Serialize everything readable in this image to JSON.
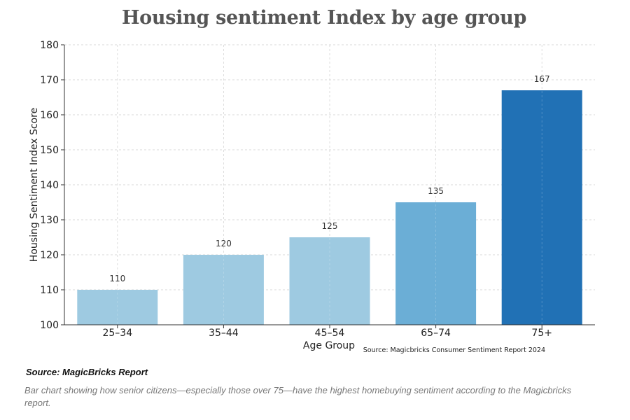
{
  "chart_data": {
    "type": "bar",
    "title": "Housing sentiment Index by age group",
    "xlabel": "Age Group",
    "ylabel": "Housing Sentiment Index Score",
    "categories": [
      "25–34",
      "35–44",
      "45–54",
      "65–74",
      "75+"
    ],
    "values": [
      110,
      120,
      125,
      135,
      167
    ],
    "data_labels": [
      "110",
      "120",
      "125",
      "135",
      "167"
    ],
    "bar_colors": [
      "#9ecae1",
      "#9ecae1",
      "#9ecae1",
      "#6baed6",
      "#2171b5"
    ],
    "ylim": [
      100,
      180
    ],
    "yticks": [
      100,
      110,
      120,
      130,
      140,
      150,
      160,
      170,
      180
    ],
    "grid": true,
    "source_note": "Source: Magicbricks Consumer Sentiment Report 2024"
  },
  "footer": {
    "source": "Source: MagicBricks Report",
    "caption": "Bar chart showing how senior citizens—especially those over 75—have the highest homebuying sentiment according to the Magicbricks report."
  },
  "colors": {
    "title": "#555555",
    "grid": "#cccccc",
    "axis": "#333333"
  }
}
